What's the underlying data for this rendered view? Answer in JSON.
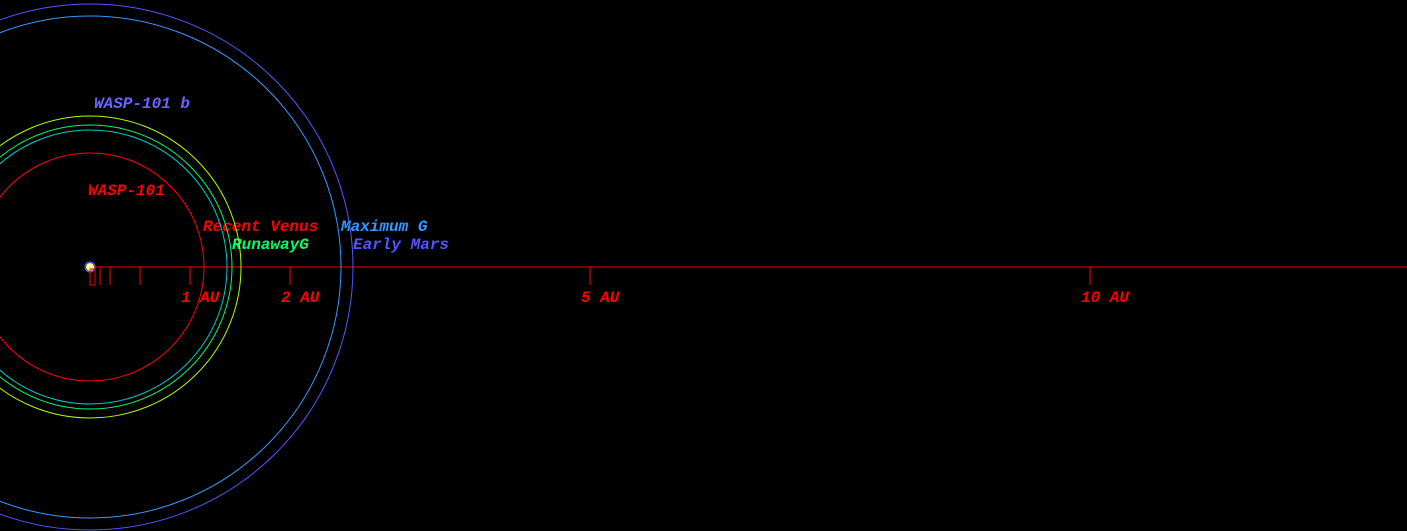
{
  "star": {
    "name": "WASP-101",
    "color": "#ff0000"
  },
  "planet": {
    "name": "WASP-101 b",
    "color": "#6666ff",
    "orbit_au": 0.05
  },
  "zones": [
    {
      "name": "Recent Venus",
      "color": "#ff0000",
      "radius_au": 1.14
    },
    {
      "name": null,
      "color": "#00c8c8",
      "radius_au": 1.37
    },
    {
      "name": "RunawayG",
      "color": "#00ff66",
      "radius_au": 1.42
    },
    {
      "name": null,
      "color": "#aaff00",
      "radius_au": 1.51
    },
    {
      "name": "Maximum G",
      "color": "#3399ff",
      "radius_au": 2.51
    },
    {
      "name": "Early Mars",
      "color": "#5555ff",
      "radius_au": 2.63
    }
  ],
  "axis": {
    "color": "#ff0000",
    "ticks": [
      {
        "value": 1,
        "label": "1 AU"
      },
      {
        "value": 2,
        "label": "2 AU"
      },
      {
        "value": 5,
        "label": "5 AU"
      },
      {
        "value": 10,
        "label": "10 AU"
      }
    ],
    "minor_ticks": [
      0.1,
      0.2,
      0.5
    ]
  }
}
